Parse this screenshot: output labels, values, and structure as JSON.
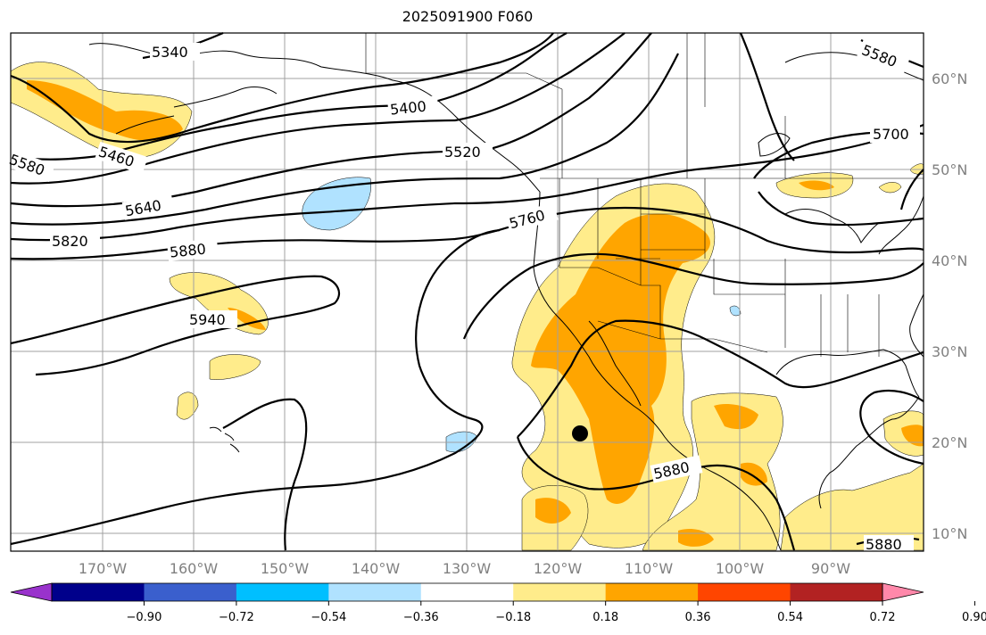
{
  "title": "2025091900 F060",
  "map": {
    "longitude_labels": [
      "170°W",
      "160°W",
      "150°W",
      "140°W",
      "130°W",
      "120°W",
      "110°W",
      "100°W",
      "90°W"
    ],
    "latitude_labels": [
      "60°N",
      "50°N",
      "40°N",
      "30°N",
      "20°N",
      "10°N"
    ],
    "gridlines": true,
    "contour_color": "#000000",
    "contour_labels": [
      "5340",
      "5580",
      "5460",
      "5400",
      "5520",
      "5700",
      "5580",
      "5640",
      "5760",
      "5820",
      "5880",
      "5940",
      "5880",
      "5880"
    ]
  },
  "colorbar": {
    "ticks": [
      "−0.90",
      "−0.72",
      "−0.54",
      "−0.36",
      "−0.18",
      "0.18",
      "0.36",
      "0.54",
      "0.72",
      "0.90"
    ],
    "colors": [
      "#9932cc",
      "#00008b",
      "#3a5fcd",
      "#00bfff",
      "#b0e2ff",
      "#ffffff",
      "#ffec8b",
      "#ffa500",
      "#ff4500",
      "#b22222",
      "#ff88aa"
    ]
  },
  "marker": {
    "lon": "117°W",
    "lat": "21°N"
  }
}
